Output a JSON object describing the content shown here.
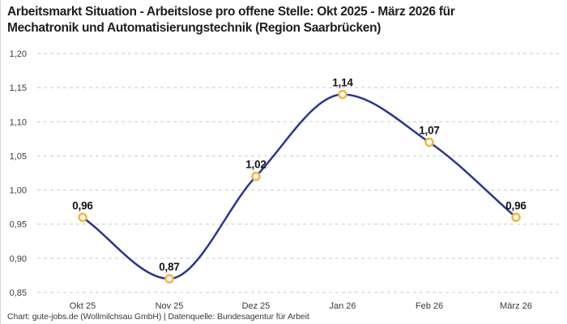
{
  "title": {
    "line1": "Arbeitsmarkt Situation - Arbeitslose pro offene Stelle: Okt 2025 - März 2026 für",
    "line2": "Mechatronik und Automatisierungstechnik (Region Saarbrücken)"
  },
  "footer": "Chart: gute-jobs.de (Wollmilchsau GmbH) | Datenquelle: Bundesagentur für Arbeit",
  "chart_data": {
    "type": "line",
    "title": "Arbeitsmarkt Situation - Arbeitslose pro offene Stelle: Okt 2025 - März 2026 für Mechatronik und Automatisierungstechnik (Region Saarbrücken)",
    "categories": [
      "Okt 25",
      "Nov 25",
      "Dez 25",
      "Jan 26",
      "Feb 26",
      "März 26"
    ],
    "values": [
      0.96,
      0.87,
      1.02,
      1.14,
      1.07,
      0.96
    ],
    "value_labels": [
      "0,96",
      "0,87",
      "1,02",
      "1,14",
      "1,07",
      "0,96"
    ],
    "xlabel": "",
    "ylabel": "",
    "ylim": [
      0.85,
      1.2
    ],
    "ytick_step": 0.05,
    "ytick_labels": [
      "0,85",
      "0,90",
      "0,95",
      "1,00",
      "1,05",
      "1,10",
      "1,15",
      "1,20"
    ],
    "grid": "horizontal-dashed",
    "legend": "none",
    "line_style": "smooth-monotone",
    "marker_style": "open-circle"
  },
  "colors": {
    "background": "#ffffff",
    "line": "#283593",
    "marker_stroke": "#f6b43c",
    "marker_fill": "#ffffff",
    "grid": "#c9c9c9",
    "title_text": "#1d1d1d",
    "axis_text": "#3a3a3a",
    "value_label_text": "#141414",
    "footer_text": "#3a3a3a"
  }
}
